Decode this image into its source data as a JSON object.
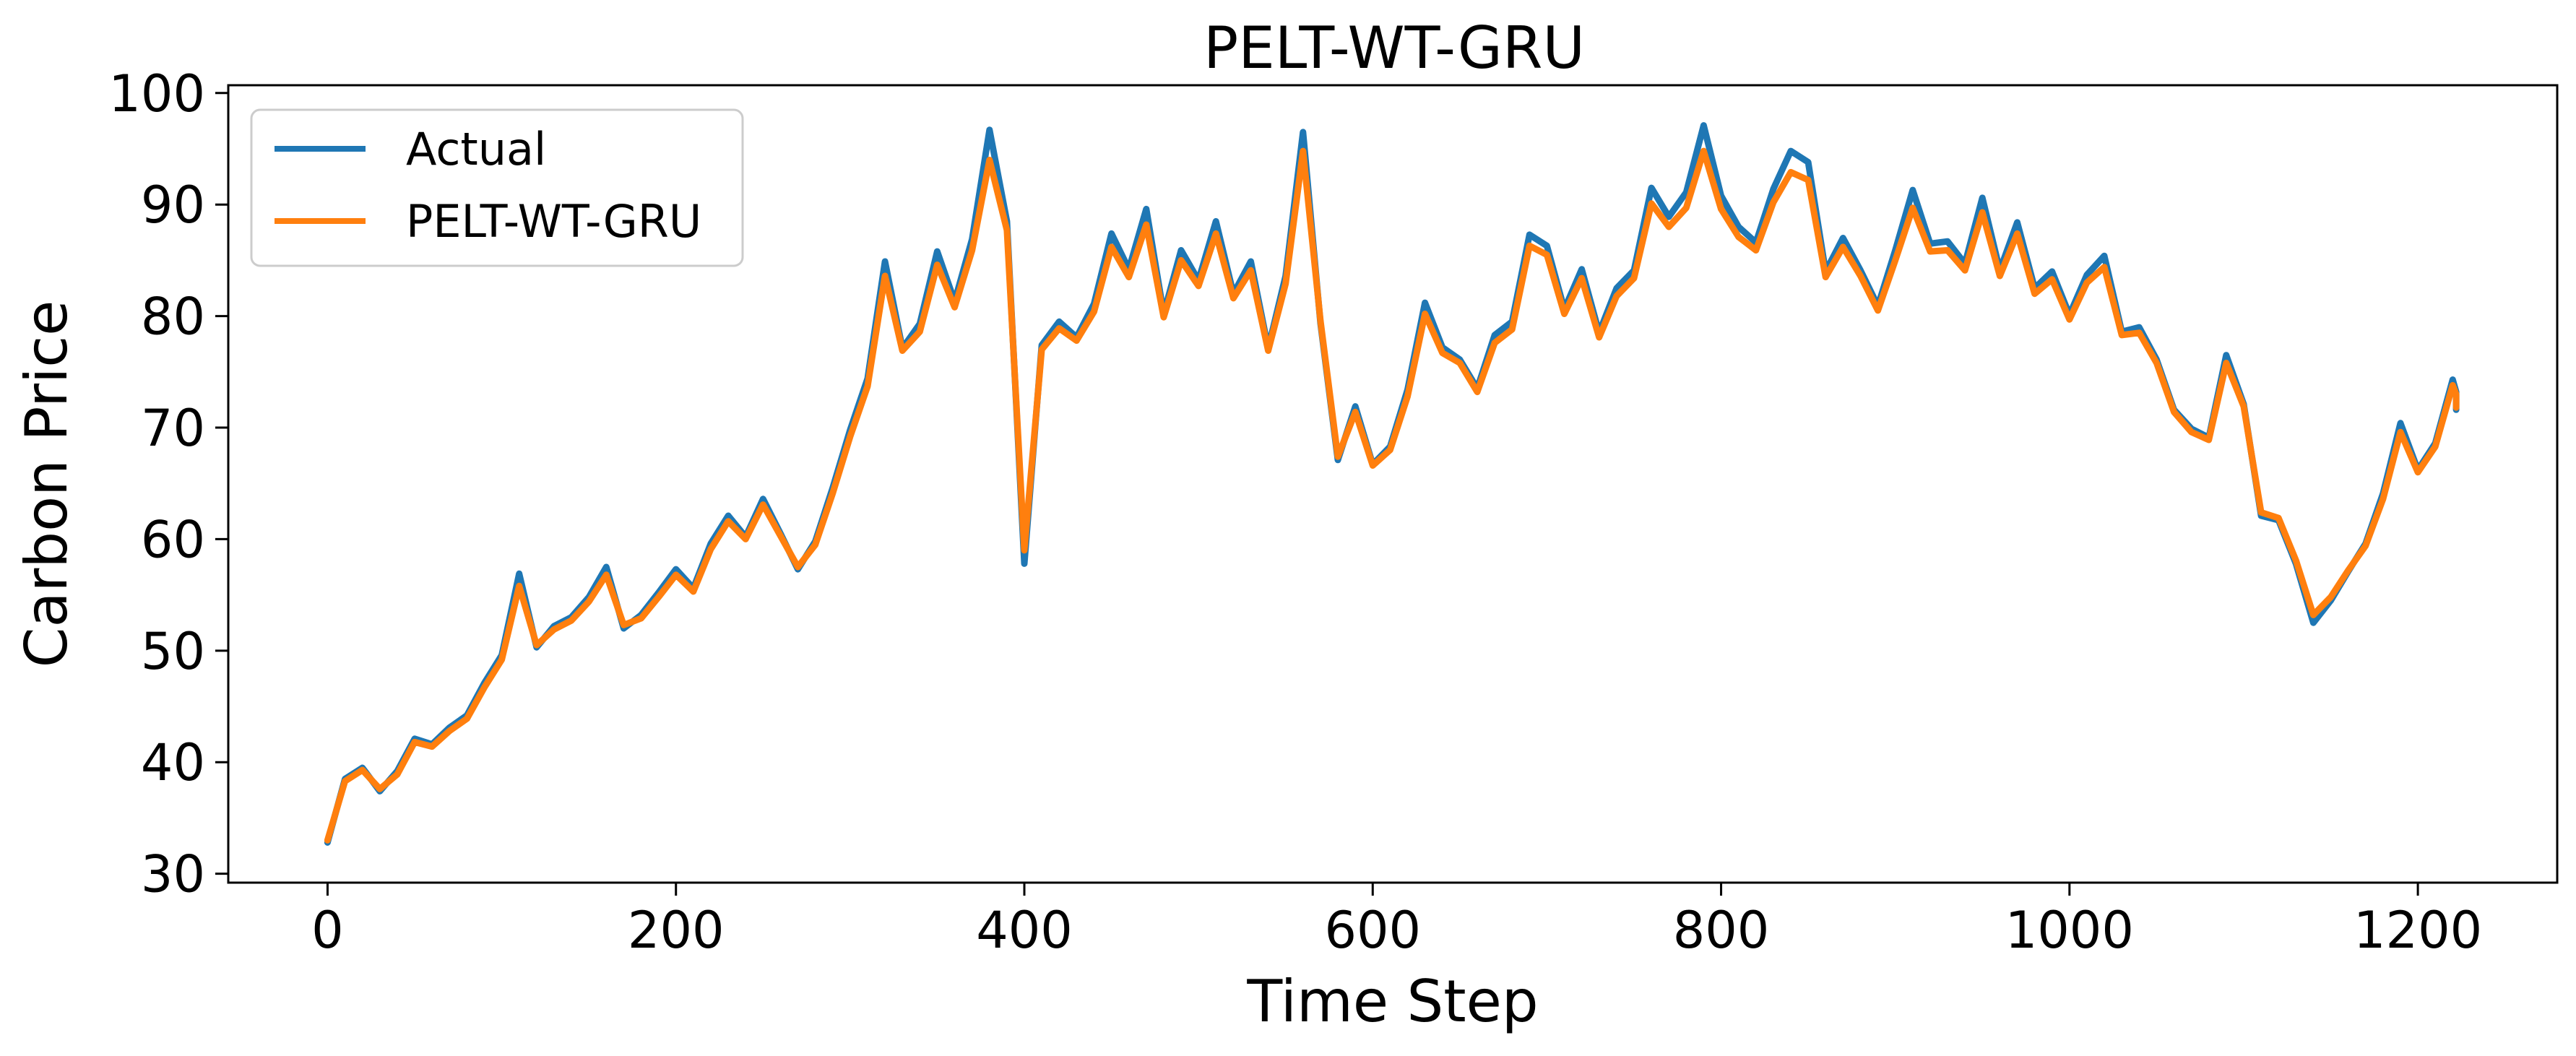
{
  "chart_data": {
    "type": "line",
    "title": "PELT-WT-GRU",
    "xlabel": "Time Step",
    "ylabel": "Carbon Price",
    "xlim": [
      -57,
      1280
    ],
    "ylim": [
      29.2,
      100.7
    ],
    "xticks": [
      0,
      200,
      400,
      600,
      800,
      1000,
      1200
    ],
    "yticks": [
      30,
      40,
      50,
      60,
      70,
      80,
      90,
      100
    ],
    "grid": false,
    "legend_position": "top-left",
    "colors": {
      "Actual": "#1f77b4",
      "PELT-WT-GRU": "#ff7f0e"
    },
    "x_step": 10,
    "series": [
      {
        "name": "Actual",
        "values": [
          32.8,
          38.5,
          39.5,
          37.4,
          39.2,
          42.1,
          41.6,
          43.1,
          44.2,
          47.1,
          49.6,
          56.9,
          50.3,
          52.2,
          53.0,
          54.8,
          57.5,
          52.0,
          53.2,
          55.2,
          57.3,
          55.6,
          59.6,
          62.1,
          60.2,
          63.6,
          60.5,
          57.3,
          59.8,
          64.6,
          69.8,
          74.4,
          84.9,
          77.1,
          79.3,
          85.8,
          81.3,
          86.9,
          96.7,
          88.5,
          57.8,
          77.4,
          79.5,
          78.1,
          81.1,
          87.4,
          84.2,
          89.6,
          80.2,
          85.9,
          83.2,
          88.5,
          82.0,
          84.9,
          77.1,
          83.6,
          96.5,
          79.4,
          67.1,
          71.9,
          66.7,
          68.3,
          73.4,
          81.2,
          77.2,
          76.1,
          73.5,
          78.3,
          79.5,
          87.3,
          86.3,
          80.6,
          84.2,
          78.5,
          82.5,
          84.1,
          91.5,
          88.9,
          91.1,
          97.1,
          90.8,
          88.0,
          86.6,
          91.4,
          94.8,
          93.8,
          84.0,
          87.0,
          84.1,
          80.9,
          85.9,
          91.3,
          86.5,
          86.7,
          84.7,
          90.6,
          84.1,
          88.4,
          82.5,
          84.0,
          80.1,
          83.7,
          85.4,
          78.6,
          79.0,
          76.1,
          71.6,
          69.9,
          69.1,
          76.5,
          72.1,
          62.1,
          61.7,
          57.8,
          52.5,
          54.5,
          57.1,
          59.6,
          64.1,
          70.4,
          66.2,
          68.6,
          74.3,
          73.2,
          71.6
        ]
      },
      {
        "name": "PELT-WT-GRU",
        "values": [
          33.0,
          38.3,
          39.3,
          37.6,
          38.9,
          41.8,
          41.4,
          42.8,
          43.9,
          46.7,
          49.2,
          55.8,
          50.5,
          51.9,
          52.7,
          54.4,
          56.8,
          52.3,
          52.9,
          54.8,
          56.8,
          55.3,
          59.1,
          61.6,
          60.0,
          63.1,
          60.3,
          57.5,
          59.5,
          64.1,
          69.2,
          73.7,
          83.6,
          76.9,
          78.6,
          84.6,
          80.8,
          85.9,
          94.0,
          87.7,
          59.0,
          77.0,
          78.9,
          77.8,
          80.4,
          86.2,
          83.5,
          88.2,
          79.9,
          85.0,
          82.7,
          87.4,
          81.6,
          84.1,
          76.9,
          82.9,
          94.8,
          79.6,
          67.4,
          71.4,
          66.6,
          68.0,
          72.8,
          80.2,
          76.7,
          75.8,
          73.2,
          77.6,
          78.8,
          86.3,
          85.5,
          80.2,
          83.4,
          78.1,
          81.8,
          83.4,
          90.1,
          88.0,
          89.7,
          94.8,
          89.6,
          87.1,
          85.9,
          90.2,
          92.9,
          92.2,
          83.5,
          86.2,
          83.6,
          80.5,
          85.0,
          89.7,
          85.8,
          85.9,
          84.1,
          89.3,
          83.6,
          87.4,
          82.0,
          83.3,
          79.7,
          83.0,
          84.4,
          78.3,
          78.5,
          75.8,
          71.4,
          69.6,
          68.9,
          75.8,
          71.9,
          62.4,
          61.9,
          58.1,
          53.2,
          54.8,
          57.2,
          59.4,
          63.6,
          69.6,
          66.0,
          68.3,
          73.8,
          73.0,
          71.8
        ]
      }
    ]
  }
}
